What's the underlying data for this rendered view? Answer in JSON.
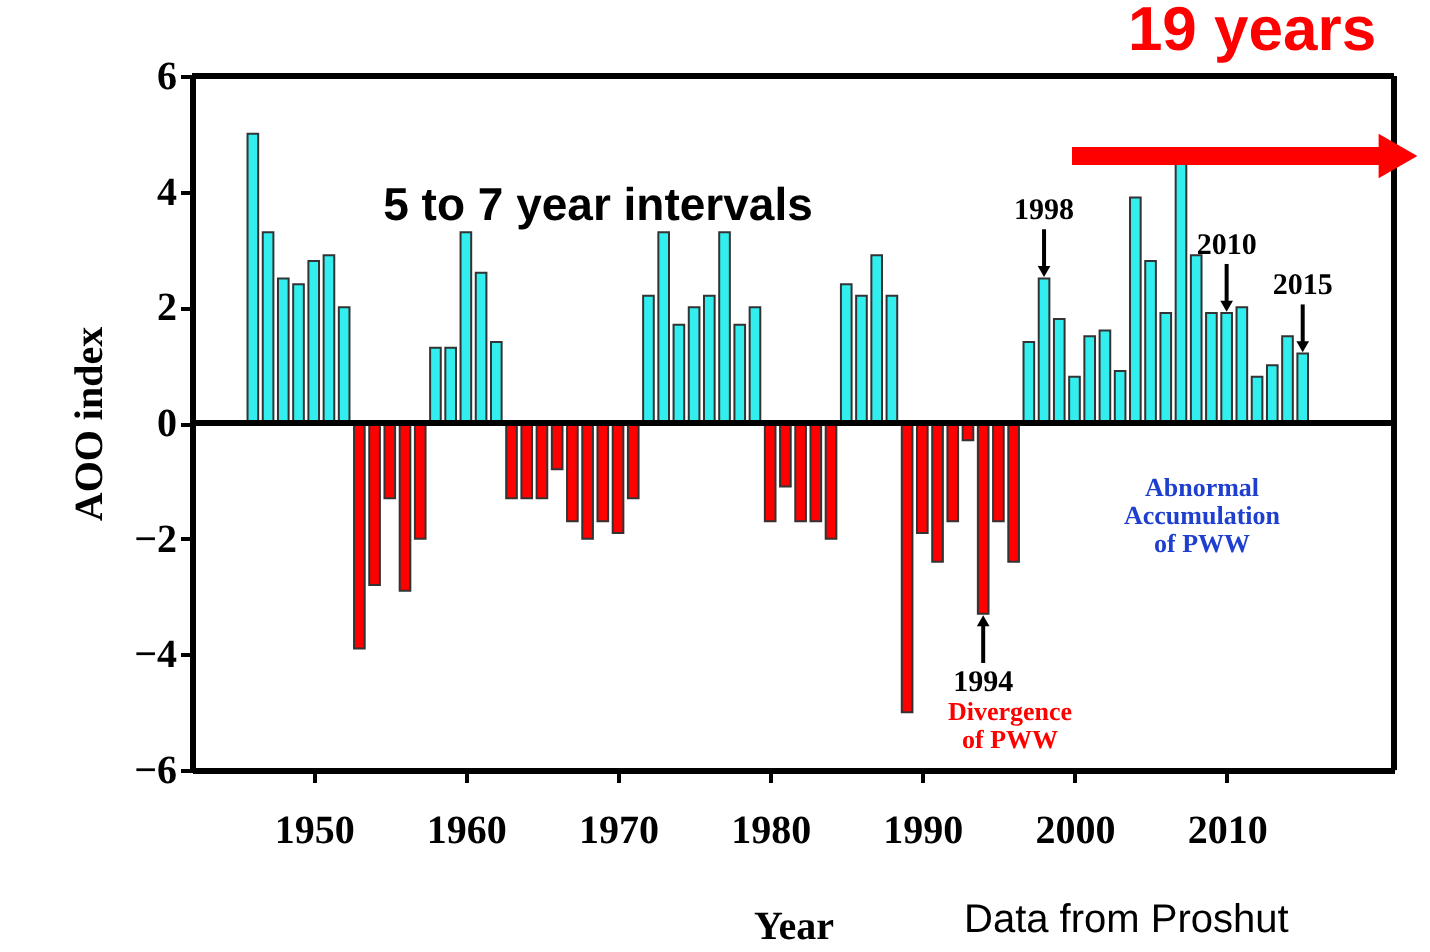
{
  "chart_data": {
    "type": "bar",
    "xlabel": "Year",
    "ylabel": "AOO index",
    "x": [
      1946,
      1947,
      1948,
      1949,
      1950,
      1951,
      1952,
      1953,
      1954,
      1955,
      1956,
      1957,
      1958,
      1959,
      1960,
      1961,
      1962,
      1963,
      1964,
      1965,
      1966,
      1967,
      1968,
      1969,
      1970,
      1971,
      1972,
      1973,
      1974,
      1975,
      1976,
      1977,
      1978,
      1979,
      1980,
      1981,
      1982,
      1983,
      1984,
      1985,
      1986,
      1987,
      1988,
      1989,
      1990,
      1991,
      1992,
      1993,
      1994,
      1995,
      1996,
      1997,
      1998,
      1999,
      2000,
      2001,
      2002,
      2003,
      2004,
      2005,
      2006,
      2007,
      2008,
      2009,
      2010,
      2011,
      2012,
      2013,
      2014,
      2015
    ],
    "values": [
      5.0,
      3.3,
      2.5,
      2.4,
      2.8,
      2.9,
      2.0,
      -3.9,
      -2.8,
      -1.3,
      -2.9,
      -2.0,
      1.3,
      1.3,
      3.3,
      2.6,
      1.4,
      -1.3,
      -1.3,
      -1.3,
      -0.8,
      -1.7,
      -2.0,
      -1.7,
      -1.9,
      -1.3,
      2.2,
      3.3,
      1.7,
      2.0,
      2.2,
      3.3,
      1.7,
      2.0,
      -1.7,
      -1.1,
      -1.7,
      -1.7,
      -2.0,
      2.4,
      2.2,
      2.9,
      2.2,
      -5.0,
      -1.9,
      -2.4,
      -1.7,
      -0.3,
      -3.3,
      -1.7,
      -2.4,
      1.4,
      2.5,
      1.8,
      0.8,
      1.5,
      1.6,
      0.9,
      3.9,
      2.8,
      1.9,
      4.5,
      2.9,
      1.9,
      1.9,
      2.0,
      0.8,
      1.0,
      1.5,
      1.2
    ],
    "colors": [
      "#33eeee",
      "#33eeee",
      "#33eeee",
      "#33eeee",
      "#33eeee",
      "#33eeee",
      "#33eeee",
      "#ff0000",
      "#ff0000",
      "#ff0000",
      "#ff0000",
      "#ff0000",
      "#33eeee",
      "#33eeee",
      "#33eeee",
      "#33eeee",
      "#33eeee",
      "#ff0000",
      "#ff0000",
      "#ff0000",
      "#ff0000",
      "#ff0000",
      "#ff0000",
      "#ff0000",
      "#ff0000",
      "#ff0000",
      "#33eeee",
      "#33eeee",
      "#33eeee",
      "#33eeee",
      "#33eeee",
      "#33eeee",
      "#33eeee",
      "#33eeee",
      "#ff0000",
      "#ff0000",
      "#ff0000",
      "#ff0000",
      "#ff0000",
      "#33eeee",
      "#33eeee",
      "#33eeee",
      "#33eeee",
      "#ff0000",
      "#ff0000",
      "#ff0000",
      "#ff0000",
      "#ff0000",
      "#ff0000",
      "#ff0000",
      "#ff0000",
      "#33eeee",
      "#33eeee",
      "#33eeee",
      "#33eeee",
      "#33eeee",
      "#33eeee",
      "#33eeee",
      "#33eeee",
      "#33eeee",
      "#33eeee",
      "#33eeee",
      "#33eeee",
      "#33eeee",
      "#33eeee",
      "#33eeee",
      "#33eeee",
      "#33eeee",
      "#33eeee",
      "#33eeee"
    ],
    "xlim": [
      1942,
      2021
    ],
    "xticks": [
      1950,
      1960,
      1970,
      1980,
      1990,
      2000,
      2010
    ],
    "ylim": [
      -6,
      6
    ],
    "yticks": [
      -6,
      -4,
      -2,
      0,
      2,
      4,
      6
    ],
    "ref_lines": [
      {
        "axis": "y",
        "value": 0
      }
    ],
    "annotations": [
      "5 to 7 year intervals",
      "19 years",
      "Divergence\nof PWW",
      "Abnormal\nAccumulation\nof PWW",
      "Data from Proshut",
      {
        "text": "1998",
        "x": 1998,
        "y": 2.5
      },
      {
        "text": "2010",
        "x": 2010,
        "y": 1.9
      },
      {
        "text": "2015",
        "x": 2015,
        "y": 1.2
      },
      {
        "text": "1994",
        "x": 1994,
        "y": -3.3
      }
    ],
    "grid": false
  }
}
